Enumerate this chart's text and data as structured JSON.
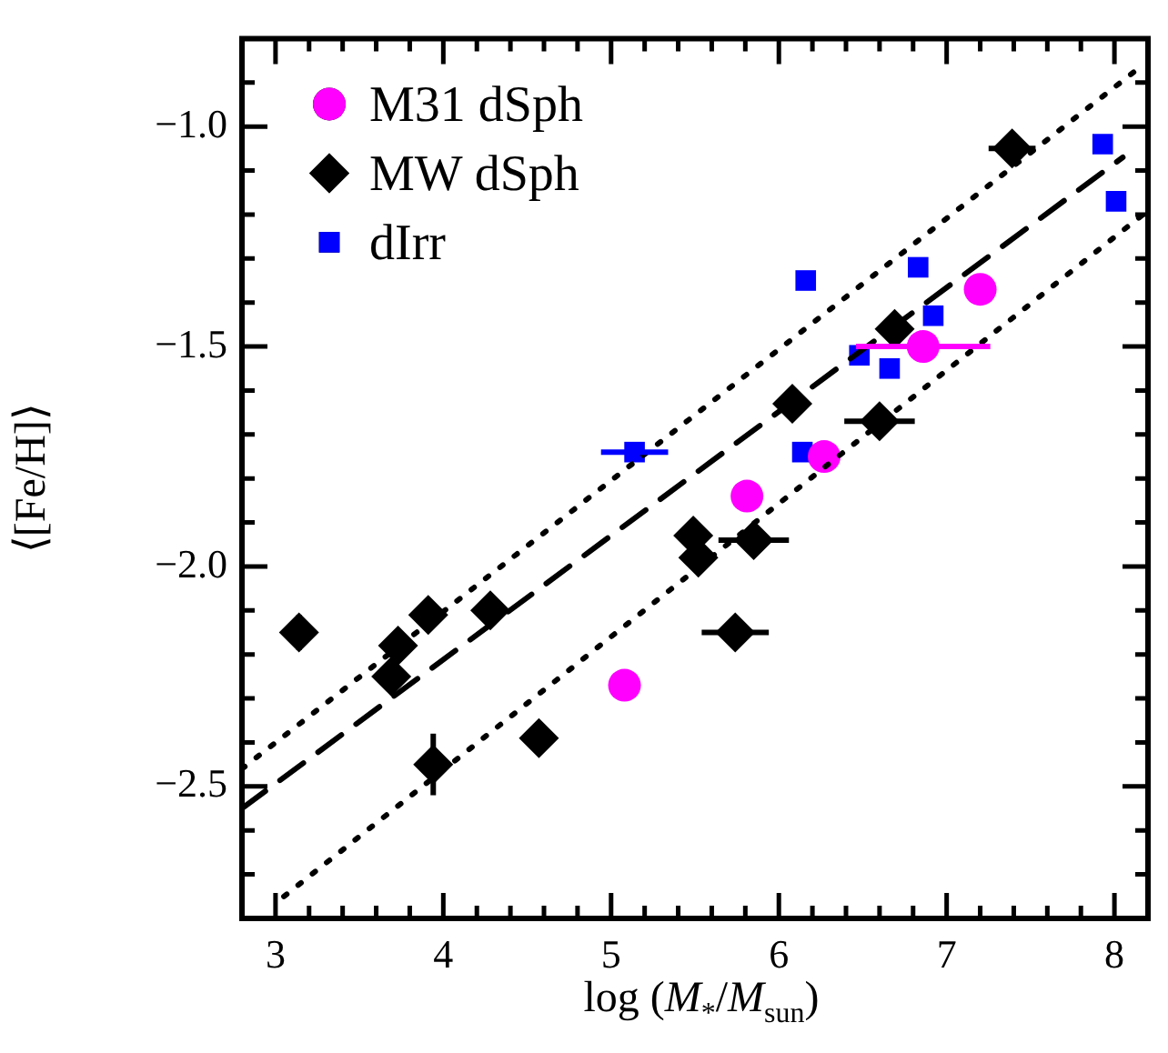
{
  "chart_data": {
    "type": "scatter",
    "xlabel": "log (M$_{*}$/M$_{sun}$)",
    "ylabel": "⟨[Fe/H]⟩",
    "xlim": [
      2.8,
      8.2
    ],
    "ylim": [
      -2.8,
      -0.8
    ],
    "xticks": [
      {
        "value": 2.8,
        "label": null
      },
      3,
      {
        "value": 3.2,
        "label": null
      },
      {
        "value": 3.4,
        "label": null
      },
      {
        "value": 3.6,
        "label": null
      },
      {
        "value": 3.8,
        "label": null
      },
      4,
      {
        "value": 4.2,
        "label": null
      },
      {
        "value": 4.4,
        "label": null
      },
      {
        "value": 4.6,
        "label": null
      },
      {
        "value": 4.8,
        "label": null
      },
      5,
      {
        "value": 5.2,
        "label": null
      },
      {
        "value": 5.4,
        "label": null
      },
      {
        "value": 5.6,
        "label": null
      },
      {
        "value": 5.8,
        "label": null
      },
      6,
      {
        "value": 6.2,
        "label": null
      },
      {
        "value": 6.4,
        "label": null
      },
      {
        "value": 6.6,
        "label": null
      },
      {
        "value": 6.8,
        "label": null
      },
      7,
      {
        "value": 7.2,
        "label": null
      },
      {
        "value": 7.4,
        "label": null
      },
      {
        "value": 7.6,
        "label": null
      },
      {
        "value": 7.8,
        "label": null
      },
      8
    ],
    "yticks": [
      {
        "value": -2.7,
        "label": null
      },
      {
        "value": -2.6,
        "label": null
      },
      {
        "value": -2.5,
        "label": "−2.5"
      },
      {
        "value": -2.4,
        "label": null
      },
      {
        "value": -2.3,
        "label": null
      },
      {
        "value": -2.2,
        "label": null
      },
      {
        "value": -2.1,
        "label": null
      },
      {
        "value": -2.0,
        "label": "−2.0"
      },
      {
        "value": -1.9,
        "label": null
      },
      {
        "value": -1.8,
        "label": null
      },
      {
        "value": -1.7,
        "label": null
      },
      {
        "value": -1.6,
        "label": null
      },
      {
        "value": -1.5,
        "label": "−1.5"
      },
      {
        "value": -1.4,
        "label": null
      },
      {
        "value": -1.3,
        "label": null
      },
      {
        "value": -1.2,
        "label": null
      },
      {
        "value": -1.1,
        "label": null
      },
      {
        "value": -1.0,
        "label": "−1.0"
      },
      {
        "value": -0.9,
        "label": null
      }
    ],
    "grid": false,
    "legend": "top left",
    "series": [
      {
        "type": "line",
        "color": "#000000",
        "line_style": "dashed",
        "marker": "none",
        "x": [
          2.8,
          8.05
        ],
        "values": [
          -2.55,
          -1.07
        ]
      },
      {
        "type": "line",
        "color": "#000000",
        "line_style": "dotted",
        "marker": "none",
        "x": [
          2.8,
          8.17
        ],
        "values": [
          -2.46,
          -0.86
        ]
      },
      {
        "type": "line",
        "color": "#000000",
        "line_style": "dotted",
        "marker": "none",
        "x": [
          3.05,
          8.17
        ],
        "values": [
          -2.75,
          -1.2
        ]
      },
      {
        "name": "M31 dSph",
        "color": "#ff00ff",
        "marker": "circle",
        "x": [
          5.08,
          5.81,
          6.27,
          6.86,
          7.2
        ],
        "values": [
          -2.27,
          -1.84,
          -1.75,
          -1.5,
          -1.37
        ],
        "xerrors": [
          null,
          null,
          null,
          0.4,
          null
        ]
      },
      {
        "name": "MW dSph",
        "color": "#000000",
        "marker": "diamond",
        "x": [
          3.14,
          3.73,
          3.69,
          3.91,
          4.28,
          3.94,
          4.57,
          5.49,
          5.52,
          5.85,
          5.74,
          6.08,
          6.6,
          6.69,
          7.39
        ],
        "values": [
          -2.15,
          -2.18,
          -2.25,
          -2.11,
          -2.1,
          -2.45,
          -2.39,
          -1.93,
          -1.98,
          -1.94,
          -2.15,
          -1.63,
          -1.67,
          -1.46,
          -1.05
        ],
        "xerrors": [
          0.1,
          null,
          null,
          null,
          null,
          null,
          null,
          null,
          null,
          0.21,
          0.2,
          null,
          0.21,
          null,
          0.14
        ],
        "errors": [
          0.04,
          null,
          null,
          null,
          null,
          0.07,
          null,
          null,
          null,
          null,
          null,
          null,
          null,
          null,
          null
        ]
      },
      {
        "name": "dIrr",
        "color": "#0000ff",
        "marker": "square",
        "x": [
          5.14,
          6.16,
          6.83,
          6.92,
          6.48,
          6.66,
          6.14,
          7.93,
          8.01
        ],
        "values": [
          -1.74,
          -1.35,
          -1.32,
          -1.43,
          -1.52,
          -1.55,
          -1.74,
          -1.04,
          -1.17
        ],
        "xerrors": [
          0.2,
          null,
          null,
          null,
          null,
          null,
          null,
          null,
          null
        ]
      }
    ]
  }
}
